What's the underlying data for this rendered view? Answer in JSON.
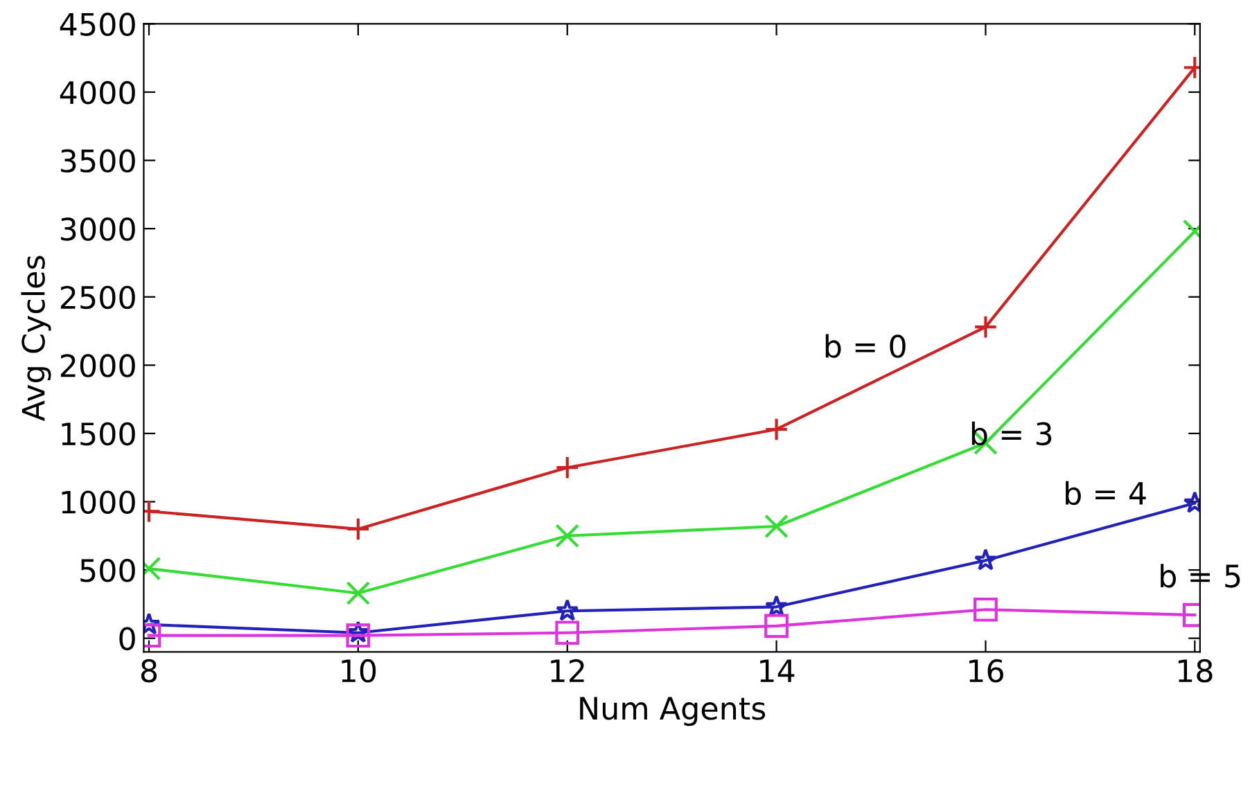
{
  "chart_data": {
    "type": "line",
    "xlabel": "Num Agents",
    "ylabel": "Avg Cycles",
    "x": [
      8,
      10,
      12,
      14,
      16,
      18
    ],
    "series": [
      {
        "color": "#cc2222",
        "marker": "plus",
        "values": [
          930,
          800,
          1250,
          1530,
          2280,
          4180
        ]
      },
      {
        "color": "#33dd33",
        "marker": "cross",
        "values": [
          510,
          330,
          750,
          820,
          1430,
          2980
        ]
      },
      {
        "color": "#2222bb",
        "marker": "star",
        "values": [
          100,
          40,
          200,
          230,
          570,
          990
        ]
      },
      {
        "color": "#dd33dd",
        "marker": "square",
        "values": [
          20,
          20,
          40,
          90,
          210,
          170
        ]
      }
    ],
    "annotations": [
      "b = 0",
      "b = 3",
      "b = 4",
      "b = 5"
    ],
    "xlim": [
      7.95,
      18.05
    ],
    "ylim": [
      -100,
      4500
    ],
    "xticks": [
      8,
      10,
      12,
      14,
      16,
      18
    ],
    "yticks": [
      0,
      500,
      1000,
      1500,
      2000,
      2500,
      3000,
      3500,
      4000,
      4500
    ],
    "grid": false,
    "legend": false
  }
}
